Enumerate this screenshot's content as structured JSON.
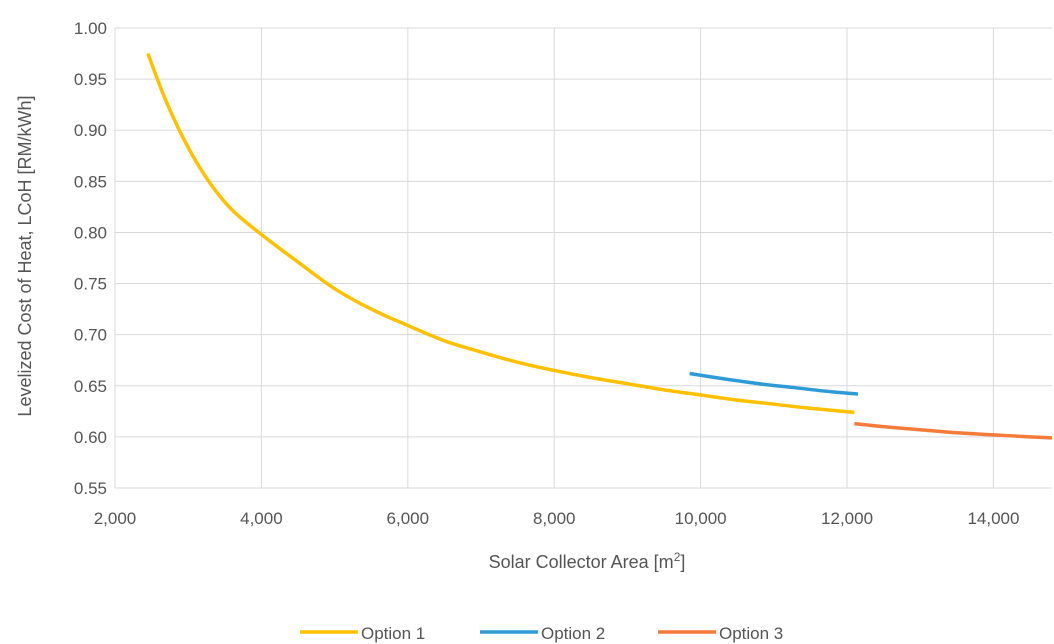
{
  "chart_data": {
    "type": "line",
    "xlabel": "Solar Collector Area [m",
    "xlabel_sup": "2",
    "xlabel_suffix": "]",
    "ylabel": "Levelized Cost of Heat, LCoH [RM/kWh]",
    "xlim": [
      2000,
      14800
    ],
    "ylim": [
      0.55,
      1.0
    ],
    "x_ticks": [
      2000,
      4000,
      6000,
      8000,
      10000,
      12000,
      14000
    ],
    "x_tick_labels": [
      "2,000",
      "4,000",
      "6,000",
      "8,000",
      "10,000",
      "12,000",
      "14,000"
    ],
    "y_ticks": [
      0.55,
      0.6,
      0.65,
      0.7,
      0.75,
      0.8,
      0.85,
      0.9,
      0.95,
      1.0
    ],
    "y_tick_labels": [
      "0.55",
      "0.60",
      "0.65",
      "0.70",
      "0.75",
      "0.80",
      "0.85",
      "0.90",
      "0.95",
      "1.00"
    ],
    "grid": true,
    "legend_position": "bottom",
    "series": [
      {
        "name": "Option 1",
        "color": "#FFC000",
        "x": [
          2450,
          2700,
          3000,
          3300,
          3600,
          4000,
          4500,
          5000,
          5500,
          6000,
          6500,
          7000,
          7500,
          8000,
          8500,
          9000,
          9500,
          10000,
          10500,
          11000,
          11500,
          12100
        ],
        "y": [
          0.975,
          0.928,
          0.883,
          0.848,
          0.822,
          0.798,
          0.771,
          0.745,
          0.725,
          0.709,
          0.694,
          0.683,
          0.673,
          0.665,
          0.658,
          0.652,
          0.646,
          0.641,
          0.636,
          0.632,
          0.628,
          0.624
        ]
      },
      {
        "name": "Option 2",
        "color": "#2E9BD6",
        "x": [
          9850,
          10300,
          10800,
          11300,
          11800,
          12150
        ],
        "y": [
          0.662,
          0.657,
          0.652,
          0.648,
          0.644,
          0.642
        ]
      },
      {
        "name": "Option 3",
        "color": "#F47B3A",
        "x": [
          12100,
          12500,
          13000,
          13500,
          14000,
          14500,
          14800
        ],
        "y": [
          0.613,
          0.61,
          0.607,
          0.604,
          0.602,
          0.6,
          0.599
        ]
      }
    ]
  }
}
